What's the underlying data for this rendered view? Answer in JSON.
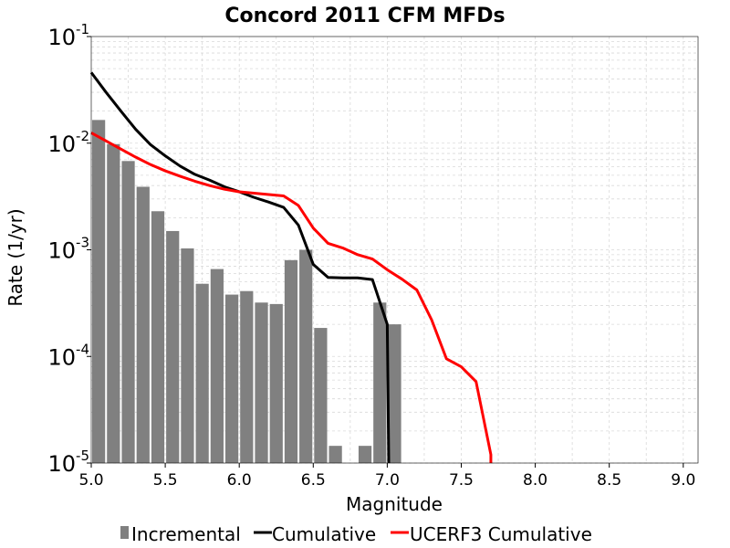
{
  "chart_data": {
    "type": "bar",
    "title": "Concord 2011 CFM MFDs",
    "xlabel": "Magnitude",
    "ylabel": "Rate (1/yr)",
    "xlim": [
      5.0,
      9.1
    ],
    "ylim": [
      1e-05,
      0.1
    ],
    "y_scale": "log",
    "grid": true,
    "legend_position": "bottom",
    "x_ticks": [
      "5.0",
      "5.5",
      "6.0",
      "6.5",
      "7.0",
      "7.5",
      "8.0",
      "8.5",
      "9.0"
    ],
    "y_ticks": [
      {
        "base": "10",
        "exp": "-5",
        "value": 1e-05
      },
      {
        "base": "10",
        "exp": "-4",
        "value": 0.0001
      },
      {
        "base": "10",
        "exp": "-3",
        "value": 0.001
      },
      {
        "base": "10",
        "exp": "-2",
        "value": 0.01
      },
      {
        "base": "10",
        "exp": "-1",
        "value": 0.1
      }
    ],
    "series": [
      {
        "name": "Incremental",
        "type": "bar",
        "color": "#808080",
        "bar_width": 0.1,
        "x": [
          5.05,
          5.15,
          5.25,
          5.35,
          5.45,
          5.55,
          5.65,
          5.75,
          5.85,
          5.95,
          6.05,
          6.15,
          6.25,
          6.35,
          6.45,
          6.55,
          6.65,
          6.75,
          6.85,
          6.95,
          7.05
        ],
        "y": [
          0.0165,
          0.0098,
          0.0068,
          0.0039,
          0.0023,
          0.0015,
          0.00103,
          0.00048,
          0.00066,
          0.00038,
          0.00041,
          0.00032,
          0.00031,
          0.0008,
          0.001,
          0.000185,
          1.45e-05,
          null,
          1.45e-05,
          0.00032,
          0.0002
        ]
      },
      {
        "name": "Cumulative",
        "type": "line",
        "color": "#000000",
        "x": [
          5.0,
          5.1,
          5.2,
          5.3,
          5.4,
          5.5,
          5.6,
          5.7,
          5.8,
          5.9,
          6.0,
          6.1,
          6.2,
          6.3,
          6.4,
          6.5,
          6.6,
          6.7,
          6.8,
          6.9,
          7.0,
          7.01
        ],
        "y": [
          0.046,
          0.03,
          0.02,
          0.0135,
          0.0097,
          0.0076,
          0.0061,
          0.0051,
          0.0045,
          0.0039,
          0.0035,
          0.0031,
          0.0028,
          0.0025,
          0.0017,
          0.00073,
          0.00055,
          0.000545,
          0.000545,
          0.000525,
          0.0002,
          5.5e-06
        ]
      },
      {
        "name": "UCERF3 Cumulative",
        "type": "line",
        "color": "#ff0000",
        "x": [
          5.0,
          5.1,
          5.2,
          5.3,
          5.4,
          5.5,
          5.6,
          5.7,
          5.8,
          5.9,
          6.0,
          6.1,
          6.2,
          6.3,
          6.4,
          6.5,
          6.6,
          6.7,
          6.8,
          6.9,
          7.0,
          7.1,
          7.2,
          7.3,
          7.4,
          7.5,
          7.6,
          7.7,
          7.7
        ],
        "y": [
          0.0125,
          0.0105,
          0.0088,
          0.0074,
          0.0063,
          0.0055,
          0.0049,
          0.0044,
          0.004,
          0.0037,
          0.0035,
          0.0034,
          0.0033,
          0.0032,
          0.0026,
          0.0016,
          0.00115,
          0.00104,
          0.0009,
          0.00082,
          0.00065,
          0.00053,
          0.00042,
          0.00022,
          9.5e-05,
          8e-05,
          5.8e-05,
          1.2e-05,
          5.5e-06
        ]
      }
    ]
  }
}
